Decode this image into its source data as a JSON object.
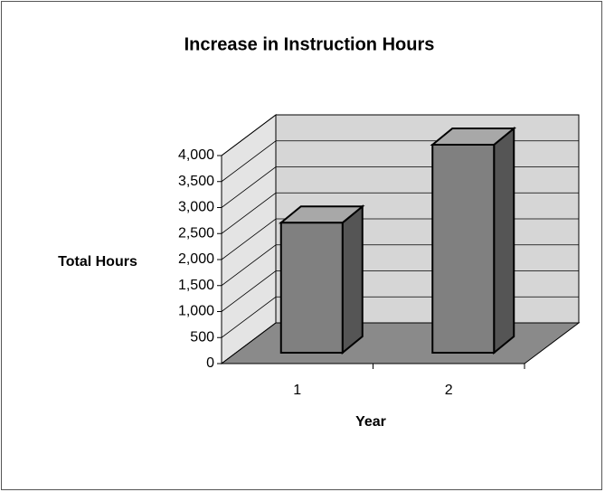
{
  "chart_data": {
    "type": "bar3d",
    "title": "Increase in Instruction Hours",
    "x_label": "Year",
    "y_label": "Total Hours",
    "categories": [
      "1",
      "2"
    ],
    "values": [
      2500,
      4000
    ],
    "color": "#808080",
    "ylim": [
      0,
      4000
    ],
    "yticks": [
      0,
      500,
      {
        "value": 1000,
        "label": "1,000"
      },
      {
        "value": 1500,
        "label": "1,500"
      },
      {
        "value": 2000,
        "label": "2,000"
      },
      {
        "value": 2500,
        "label": "2,500"
      },
      {
        "value": 3000,
        "label": "3,000"
      },
      {
        "value": 3500,
        "label": "3,500"
      },
      {
        "value": 4000,
        "label": "4,000"
      }
    ],
    "grid": true
  }
}
